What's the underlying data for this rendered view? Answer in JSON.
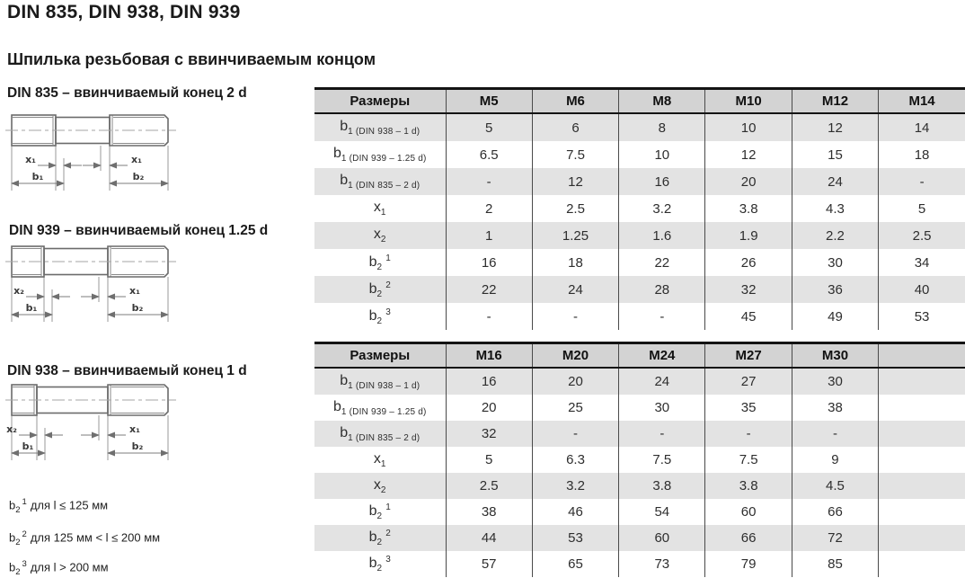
{
  "page": {
    "title": "DIN 835, DIN 938, DIN 939",
    "subtitle": "Шпилька резьбовая с ввинчиваемым концом"
  },
  "colors": {
    "header_bg": "#d3d3d3",
    "stripe_bg": "#e3e3e3",
    "table_border": "#141414",
    "column_line": "#4a4a4a"
  },
  "diagrams": [
    {
      "caption": "DIN 835 – ввинчиваемый конец 2 d",
      "dims": {
        "left": "x₁",
        "right": "x₁",
        "b1": "b₁",
        "b2": "b₂"
      }
    },
    {
      "caption": "DIN 939 – ввинчиваемый конец 1.25 d",
      "dims": {
        "left": "x₂",
        "right": "x₁",
        "b1": "b₁",
        "b2": "b₂"
      }
    },
    {
      "caption": "DIN 938 – ввинчиваемый конец 1 d",
      "dims": {
        "left": "x₂",
        "right": "x₁",
        "b1": "b₁",
        "b2": "b₂"
      }
    }
  ],
  "footnotes": [
    {
      "base": "b",
      "sub": "2",
      "sup": "1",
      "text": "для l ≤ 125 мм"
    },
    {
      "base": "b",
      "sub": "2",
      "sup": "2",
      "text": "для 125 мм < l ≤ 200 мм"
    },
    {
      "base": "b",
      "sub": "2",
      "sup": "3",
      "text": "для l > 200 мм"
    }
  ],
  "tables": [
    {
      "header": [
        "Размеры",
        "M5",
        "M6",
        "M8",
        "M10",
        "M12",
        "M14"
      ],
      "rows": [
        {
          "label": {
            "base": "b",
            "sub": "1 (DIN 938 – 1 d)",
            "sup": ""
          },
          "values": [
            "5",
            "6",
            "8",
            "10",
            "12",
            "14"
          ]
        },
        {
          "label": {
            "base": "b",
            "sub": "1 (DIN 939 – 1.25 d)",
            "sup": ""
          },
          "values": [
            "6.5",
            "7.5",
            "10",
            "12",
            "15",
            "18"
          ]
        },
        {
          "label": {
            "base": "b",
            "sub": "1 (DIN 835 – 2 d)",
            "sup": ""
          },
          "values": [
            "-",
            "12",
            "16",
            "20",
            "24",
            "-"
          ]
        },
        {
          "label": {
            "base": "x",
            "sub": "1",
            "sup": ""
          },
          "values": [
            "2",
            "2.5",
            "3.2",
            "3.8",
            "4.3",
            "5"
          ]
        },
        {
          "label": {
            "base": "x",
            "sub": "2",
            "sup": ""
          },
          "values": [
            "1",
            "1.25",
            "1.6",
            "1.9",
            "2.2",
            "2.5"
          ]
        },
        {
          "label": {
            "base": "b",
            "sub": "2",
            "sup": "1"
          },
          "values": [
            "16",
            "18",
            "22",
            "26",
            "30",
            "34"
          ]
        },
        {
          "label": {
            "base": "b",
            "sub": "2",
            "sup": "2"
          },
          "values": [
            "22",
            "24",
            "28",
            "32",
            "36",
            "40"
          ]
        },
        {
          "label": {
            "base": "b",
            "sub": "2",
            "sup": "3"
          },
          "values": [
            "-",
            "-",
            "-",
            "45",
            "49",
            "53"
          ]
        }
      ]
    },
    {
      "header": [
        "Размеры",
        "M16",
        "M20",
        "M24",
        "M27",
        "M30",
        ""
      ],
      "rows": [
        {
          "label": {
            "base": "b",
            "sub": "1 (DIN 938 – 1 d)",
            "sup": ""
          },
          "values": [
            "16",
            "20",
            "24",
            "27",
            "30",
            ""
          ]
        },
        {
          "label": {
            "base": "b",
            "sub": "1 (DIN 939 – 1.25 d)",
            "sup": ""
          },
          "values": [
            "20",
            "25",
            "30",
            "35",
            "38",
            ""
          ]
        },
        {
          "label": {
            "base": "b",
            "sub": "1 (DIN 835 – 2 d)",
            "sup": ""
          },
          "values": [
            "32",
            "-",
            "-",
            "-",
            "-",
            ""
          ]
        },
        {
          "label": {
            "base": "x",
            "sub": "1",
            "sup": ""
          },
          "values": [
            "5",
            "6.3",
            "7.5",
            "7.5",
            "9",
            ""
          ]
        },
        {
          "label": {
            "base": "x",
            "sub": "2",
            "sup": ""
          },
          "values": [
            "2.5",
            "3.2",
            "3.8",
            "3.8",
            "4.5",
            ""
          ]
        },
        {
          "label": {
            "base": "b",
            "sub": "2",
            "sup": "1"
          },
          "values": [
            "38",
            "46",
            "54",
            "60",
            "66",
            ""
          ]
        },
        {
          "label": {
            "base": "b",
            "sub": "2",
            "sup": "2"
          },
          "values": [
            "44",
            "53",
            "60",
            "66",
            "72",
            ""
          ]
        },
        {
          "label": {
            "base": "b",
            "sub": "2",
            "sup": "3"
          },
          "values": [
            "57",
            "65",
            "73",
            "79",
            "85",
            ""
          ]
        }
      ]
    }
  ]
}
